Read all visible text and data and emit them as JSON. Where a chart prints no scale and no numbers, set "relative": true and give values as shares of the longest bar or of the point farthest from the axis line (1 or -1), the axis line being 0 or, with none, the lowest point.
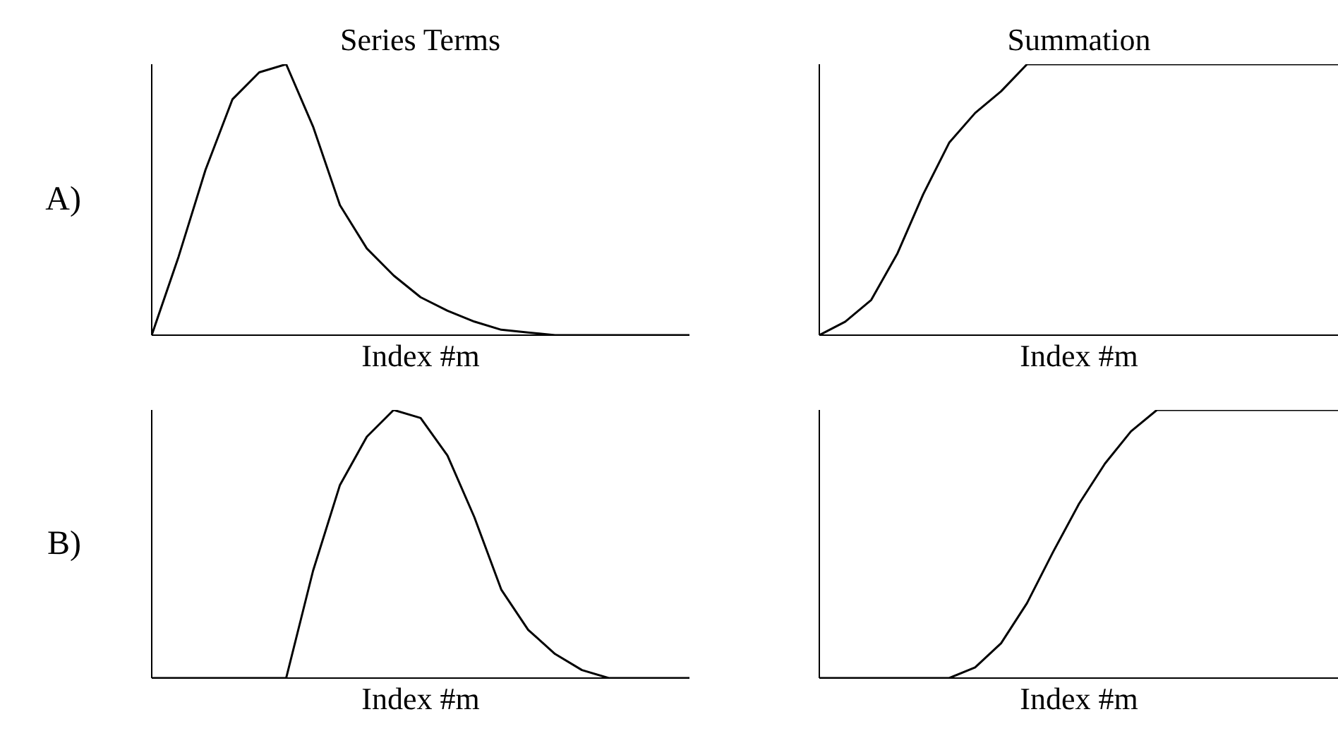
{
  "chart_data": [
    {
      "type": "line",
      "title": "Series Terms",
      "xlabel": "Index #m",
      "ylabel": "A)",
      "relative": true,
      "categories": [
        null,
        null,
        null,
        null,
        null,
        null,
        null,
        null,
        null,
        null,
        null,
        null,
        null,
        null,
        null,
        null,
        null,
        null,
        null,
        null,
        null
      ],
      "series": [
        {
          "color": "#000000",
          "values": [
            0,
            0.29,
            0.61,
            0.87,
            0.97,
            1,
            0.77,
            0.48,
            0.32,
            0.22,
            0.14,
            0.09,
            0.05,
            0.02,
            0.01,
            0,
            0,
            0,
            0,
            0,
            0
          ]
        }
      ]
    },
    {
      "type": "line",
      "title": "Summation",
      "xlabel": "Index #m",
      "relative": true,
      "categories": [
        null,
        null,
        null,
        null,
        null,
        null,
        null,
        null,
        null,
        null,
        null,
        null,
        null,
        null,
        null,
        null,
        null,
        null,
        null,
        null,
        null
      ],
      "series": [
        {
          "color": "#000000",
          "values": [
            0,
            0.05,
            0.13,
            0.3,
            0.52,
            0.71,
            0.82,
            0.9,
            1,
            1,
            1,
            1,
            1,
            1,
            1,
            1,
            1,
            1,
            1,
            1,
            1
          ]
        }
      ]
    },
    {
      "type": "line",
      "xlabel": "Index #m",
      "ylabel": "B)",
      "relative": true,
      "categories": [
        null,
        null,
        null,
        null,
        null,
        null,
        null,
        null,
        null,
        null,
        null,
        null,
        null,
        null,
        null,
        null,
        null,
        null,
        null,
        null,
        null
      ],
      "series": [
        {
          "color": "#000000",
          "values": [
            0,
            0,
            0,
            0,
            0,
            0,
            0.4,
            0.72,
            0.9,
            1,
            0.97,
            0.83,
            0.6,
            0.33,
            0.18,
            0.09,
            0.03,
            0,
            0,
            0,
            0
          ]
        }
      ]
    },
    {
      "type": "line",
      "xlabel": "Index #m",
      "relative": true,
      "categories": [
        null,
        null,
        null,
        null,
        null,
        null,
        null,
        null,
        null,
        null,
        null,
        null,
        null,
        null,
        null,
        null,
        null,
        null,
        null,
        null,
        null
      ],
      "series": [
        {
          "color": "#000000",
          "values": [
            0,
            0,
            0,
            0,
            0,
            0,
            0.04,
            0.13,
            0.28,
            0.47,
            0.65,
            0.8,
            0.92,
            1,
            1,
            1,
            1,
            1,
            1,
            1,
            1
          ]
        }
      ]
    }
  ]
}
